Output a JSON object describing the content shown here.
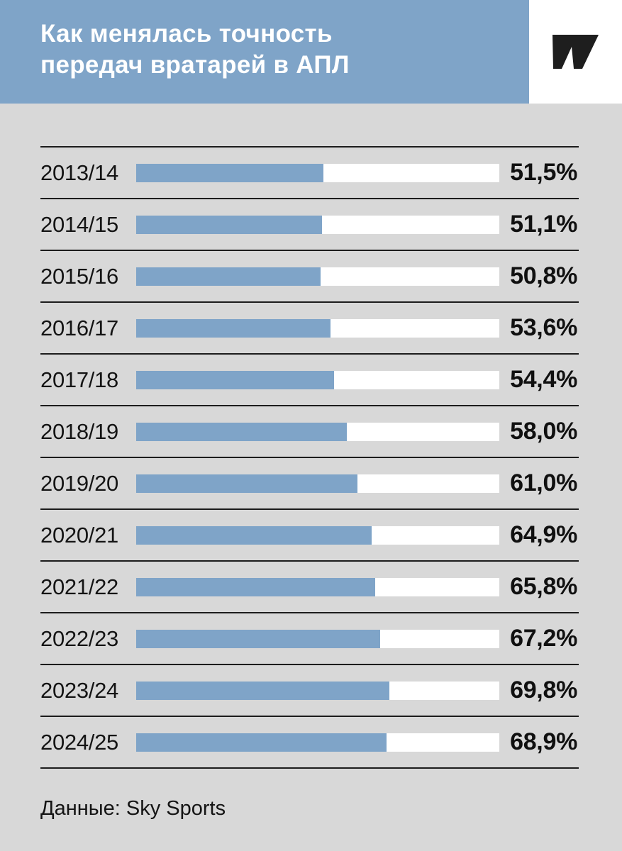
{
  "header": {
    "title_lines": [
      "Как менялась точность",
      "передач вратарей в АПЛ"
    ],
    "logo": "sports-ru-mark"
  },
  "colors": {
    "page_bg": "#d8d8d8",
    "header_bg": "#7fa4c8",
    "bar_fill": "#7fa4c8",
    "track": "#ffffff",
    "line": "#1c1c1c",
    "logo": "#1e1e1e"
  },
  "footer": {
    "source": "Данные: Sky Sports"
  },
  "chart_data": {
    "type": "bar",
    "orientation": "horizontal",
    "title": "Как менялась точность передач вратарей в АПЛ",
    "categories": [
      "2013/14",
      "2014/15",
      "2015/16",
      "2016/17",
      "2017/18",
      "2018/19",
      "2019/20",
      "2020/21",
      "2021/22",
      "2022/23",
      "2023/24",
      "2024/25"
    ],
    "values": [
      51.5,
      51.1,
      50.8,
      53.6,
      54.4,
      58.0,
      61.0,
      64.9,
      65.8,
      67.2,
      69.8,
      68.9
    ],
    "value_labels": [
      "51,5%",
      "51,1%",
      "50,8%",
      "53,6%",
      "54,4%",
      "58,0%",
      "61,0%",
      "64,9%",
      "65,8%",
      "67,2%",
      "69,8%",
      "68,9%"
    ],
    "xlim": [
      0,
      100
    ],
    "grid": false,
    "legend": false,
    "source": "Данные: Sky Sports"
  }
}
